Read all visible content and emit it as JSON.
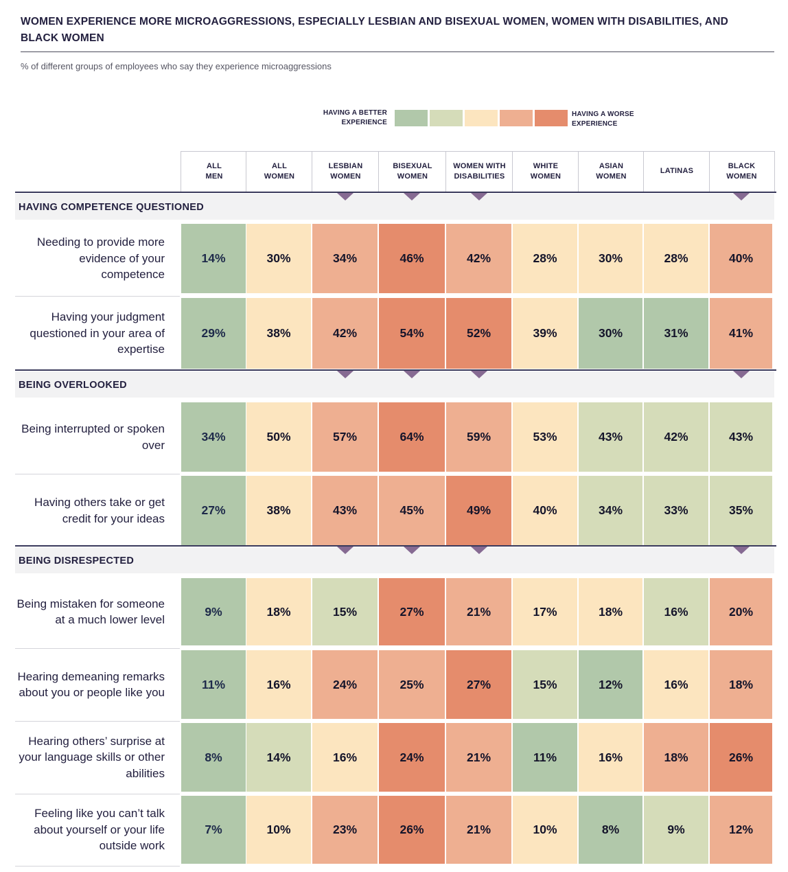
{
  "title": "WOMEN EXPERIENCE MORE MICROAGGRESSIONS, ESPECIALLY LESBIAN AND BISEXUAL WOMEN, WOMEN WITH DISABILITIES, AND BLACK WOMEN",
  "subtitle": "% of different groups of employees who say they experience microaggressions",
  "legend": {
    "better_line1": "HAVING A BETTER",
    "better_line2": "EXPERIENCE",
    "worse_line1": "HAVING A WORSE",
    "worse_line2": "EXPERIENCE",
    "scale_colors": [
      "#b1c8aa",
      "#d5dcb9",
      "#fce5bf",
      "#eeaf91",
      "#e58c6c"
    ]
  },
  "columns": [
    {
      "line1": "ALL",
      "line2": "MEN"
    },
    {
      "line1": "ALL",
      "line2": "WOMEN"
    },
    {
      "line1": "LESBIAN",
      "line2": "WOMEN"
    },
    {
      "line1": "BISEXUAL",
      "line2": "WOMEN"
    },
    {
      "line1": "WOMEN WITH",
      "line2": "DISABILITIES"
    },
    {
      "line1": "WHITE",
      "line2": "WOMEN"
    },
    {
      "line1": "ASIAN",
      "line2": "WOMEN"
    },
    {
      "line1": "LATINAS",
      "line2": ""
    },
    {
      "line1": "BLACK",
      "line2": "WOMEN"
    }
  ],
  "sections": [
    {
      "title": "HAVING COMPETENCE QUESTIONED",
      "highlighted_columns": [
        "LESBIAN WOMEN",
        "BISEXUAL WOMEN",
        "WOMEN WITH DISABILITIES",
        "BLACK WOMEN"
      ],
      "rows": [
        {
          "label": "Needing to provide more evidence of your competence",
          "values": [
            "14%",
            "30%",
            "34%",
            "46%",
            "42%",
            "28%",
            "30%",
            "28%",
            "40%"
          ],
          "levels": [
            0,
            2,
            3,
            4,
            3,
            2,
            2,
            2,
            3
          ]
        },
        {
          "label": "Having your judgment questioned in your area of expertise",
          "values": [
            "29%",
            "38%",
            "42%",
            "54%",
            "52%",
            "39%",
            "30%",
            "31%",
            "41%"
          ],
          "levels": [
            0,
            2,
            3,
            4,
            4,
            2,
            0,
            0,
            3
          ]
        }
      ]
    },
    {
      "title": "BEING OVERLOOKED",
      "highlighted_columns": [
        "LESBIAN WOMEN",
        "BISEXUAL WOMEN",
        "WOMEN WITH DISABILITIES",
        "BLACK WOMEN"
      ],
      "rows": [
        {
          "label": "Being interrupted or spoken over",
          "values": [
            "34%",
            "50%",
            "57%",
            "64%",
            "59%",
            "53%",
            "43%",
            "42%",
            "43%"
          ],
          "levels": [
            0,
            2,
            3,
            4,
            3,
            2,
            1,
            1,
            1
          ]
        },
        {
          "label": "Having others take or get credit for your ideas",
          "values": [
            "27%",
            "38%",
            "43%",
            "45%",
            "49%",
            "40%",
            "34%",
            "33%",
            "35%"
          ],
          "levels": [
            0,
            2,
            3,
            3,
            4,
            2,
            1,
            1,
            1
          ]
        }
      ]
    },
    {
      "title": "BEING DISRESPECTED",
      "highlighted_columns": [
        "LESBIAN WOMEN",
        "BISEXUAL WOMEN",
        "WOMEN WITH DISABILITIES",
        "BLACK WOMEN"
      ],
      "rows": [
        {
          "label": "Being mistaken for someone at a much lower level",
          "values": [
            "9%",
            "18%",
            "15%",
            "27%",
            "21%",
            "17%",
            "18%",
            "16%",
            "20%"
          ],
          "levels": [
            0,
            2,
            1,
            4,
            3,
            2,
            2,
            1,
            3
          ]
        },
        {
          "label": "Hearing demeaning remarks about you or people like you",
          "values": [
            "11%",
            "16%",
            "24%",
            "25%",
            "27%",
            "15%",
            "12%",
            "16%",
            "18%"
          ],
          "levels": [
            0,
            2,
            3,
            3,
            4,
            1,
            0,
            2,
            3
          ]
        },
        {
          "label": "Hearing others’ surprise at your language skills or other abilities",
          "values": [
            "8%",
            "14%",
            "16%",
            "24%",
            "21%",
            "11%",
            "16%",
            "18%",
            "26%"
          ],
          "levels": [
            0,
            1,
            2,
            4,
            3,
            0,
            2,
            3,
            4
          ]
        },
        {
          "label": "Feeling like you can’t talk about yourself or your life outside work",
          "values": [
            "7%",
            "10%",
            "23%",
            "26%",
            "21%",
            "10%",
            "8%",
            "9%",
            "12%"
          ],
          "levels": [
            0,
            2,
            3,
            4,
            3,
            2,
            0,
            1,
            3
          ]
        }
      ]
    }
  ],
  "chart_data": {
    "type": "heatmap",
    "title": "WOMEN EXPERIENCE MORE MICROAGGRESSIONS, ESPECIALLY LESBIAN AND BISEXUAL WOMEN, WOMEN WITH DISABILITIES, AND BLACK WOMEN",
    "subtitle": "% of different groups of employees who say they experience microaggressions",
    "unit": "%",
    "columns": [
      "ALL MEN",
      "ALL WOMEN",
      "LESBIAN WOMEN",
      "BISEXUAL WOMEN",
      "WOMEN WITH DISABILITIES",
      "WHITE WOMEN",
      "ASIAN WOMEN",
      "LATINAS",
      "BLACK WOMEN"
    ],
    "legend": "5-step scale from HAVING A BETTER EXPERIENCE (green) to HAVING A WORSE EXPERIENCE (orange)",
    "rows": [
      {
        "group": "HAVING COMPETENCE QUESTIONED",
        "label": "Needing to provide more evidence of your competence",
        "values": [
          14,
          30,
          34,
          46,
          42,
          28,
          30,
          28,
          40
        ]
      },
      {
        "group": "HAVING COMPETENCE QUESTIONED",
        "label": "Having your judgment questioned in your area of expertise",
        "values": [
          29,
          38,
          42,
          54,
          52,
          39,
          30,
          31,
          41
        ]
      },
      {
        "group": "BEING OVERLOOKED",
        "label": "Being interrupted or spoken over",
        "values": [
          34,
          50,
          57,
          64,
          59,
          53,
          43,
          42,
          43
        ]
      },
      {
        "group": "BEING OVERLOOKED",
        "label": "Having others take or get credit for your ideas",
        "values": [
          27,
          38,
          43,
          45,
          49,
          40,
          34,
          33,
          35
        ]
      },
      {
        "group": "BEING DISRESPECTED",
        "label": "Being mistaken for someone at a much lower level",
        "values": [
          9,
          18,
          15,
          27,
          21,
          17,
          18,
          16,
          20
        ]
      },
      {
        "group": "BEING DISRESPECTED",
        "label": "Hearing demeaning remarks about you or people like you",
        "values": [
          11,
          16,
          24,
          25,
          27,
          15,
          12,
          16,
          18
        ]
      },
      {
        "group": "BEING DISRESPECTED",
        "label": "Hearing others’ surprise at your language skills or other abilities",
        "values": [
          8,
          14,
          16,
          24,
          21,
          11,
          16,
          18,
          26
        ]
      },
      {
        "group": "BEING DISRESPECTED",
        "label": "Feeling like you can’t talk about yourself or your life outside work",
        "values": [
          7,
          10,
          23,
          26,
          21,
          10,
          8,
          9,
          12
        ]
      }
    ]
  }
}
